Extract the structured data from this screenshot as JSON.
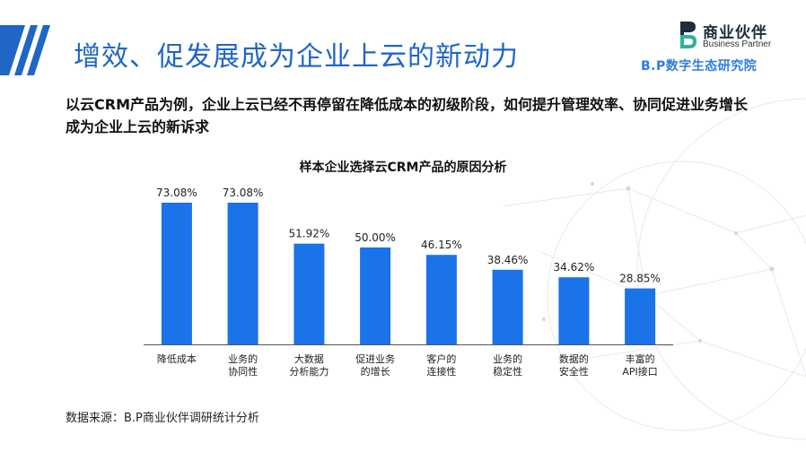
{
  "header": {
    "title": "增效、促发展成为企业上云的新动力"
  },
  "logo": {
    "name_cn": "商业伙伴",
    "name_en": "Business Partner",
    "institute": "B.P数字生态研究院",
    "brand_color": "#2d7be5"
  },
  "subtitle": "以云CRM产品为例，企业上云已经不再停留在降低成本的初级阶段，如何提升管理效率、协同促进业务增长成为企业上云的新诉求",
  "chart_data": {
    "type": "bar",
    "title": "样本企业选择云CRM产品的原因分析",
    "categories": [
      [
        "降低成本"
      ],
      [
        "业务的",
        "协同性"
      ],
      [
        "大数据",
        "分析能力"
      ],
      [
        "促进业务",
        "的增长"
      ],
      [
        "客户的",
        "连接性"
      ],
      [
        "业务的",
        "稳定性"
      ],
      [
        "数据的",
        "安全性"
      ],
      [
        "丰富的",
        "API接口"
      ]
    ],
    "values": [
      73.08,
      73.08,
      51.92,
      50.0,
      46.15,
      38.46,
      34.62,
      28.85
    ],
    "value_labels": [
      "73.08%",
      "73.08%",
      "51.92%",
      "50.00%",
      "46.15%",
      "38.46%",
      "34.62%",
      "28.85%"
    ],
    "unit": "%",
    "ylim": [
      0,
      80
    ],
    "bar_color": "#1a73e8",
    "grid": false,
    "legend": "none"
  },
  "source": "数据来源：B.P商业伙伴调研统计分析",
  "colors": {
    "title": "#1f66c7",
    "stripes": "#1f66c7"
  }
}
